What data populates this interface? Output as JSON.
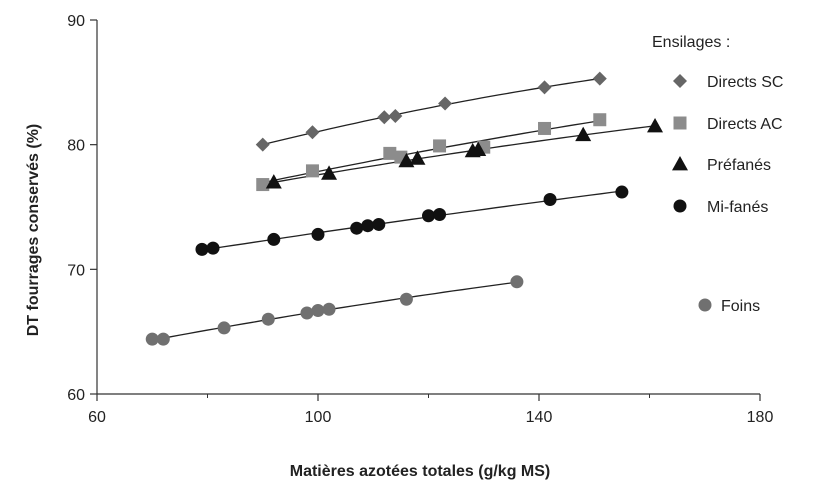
{
  "chart_data": {
    "type": "scatter",
    "title": "",
    "xlabel": "Matières azotées totales (g/kg MS)",
    "ylabel": "DT fourrages conservés (%)",
    "xlim": [
      60,
      180
    ],
    "ylim": [
      60,
      90
    ],
    "x_ticks": [
      "60",
      "100",
      "140",
      "180"
    ],
    "y_ticks": [
      "60",
      "70",
      "80",
      "90"
    ],
    "grid": false,
    "legend_title": "Ensilages :",
    "legend_position": "right",
    "series": [
      {
        "name": "Directs SC",
        "marker": "diamond",
        "color": "#666666",
        "trendline": true,
        "points": [
          [
            90,
            80.0
          ],
          [
            99,
            81.0
          ],
          [
            112,
            82.2
          ],
          [
            114,
            82.3
          ],
          [
            123,
            83.3
          ],
          [
            141,
            84.6
          ],
          [
            151,
            85.3
          ]
        ]
      },
      {
        "name": "Directs AC",
        "marker": "square",
        "color": "#8c8c8c",
        "trendline": true,
        "points": [
          [
            90,
            76.8
          ],
          [
            99,
            77.9
          ],
          [
            113,
            79.3
          ],
          [
            115,
            79.0
          ],
          [
            122,
            79.9
          ],
          [
            130,
            79.8
          ],
          [
            141,
            81.3
          ],
          [
            151,
            82.0
          ]
        ]
      },
      {
        "name": "Préfanés",
        "marker": "triangle",
        "color": "#111111",
        "trendline": true,
        "points": [
          [
            92,
            77.0
          ],
          [
            102,
            77.7
          ],
          [
            116,
            78.7
          ],
          [
            118,
            78.9
          ],
          [
            128,
            79.5
          ],
          [
            129,
            79.6
          ],
          [
            148,
            80.8
          ],
          [
            161,
            81.5
          ]
        ]
      },
      {
        "name": "Mi-fanés",
        "marker": "circle",
        "color": "#111111",
        "trendline": true,
        "points": [
          [
            79,
            71.6
          ],
          [
            81,
            71.7
          ],
          [
            92,
            72.4
          ],
          [
            100,
            72.8
          ],
          [
            107,
            73.3
          ],
          [
            109,
            73.5
          ],
          [
            111,
            73.6
          ],
          [
            120,
            74.3
          ],
          [
            122,
            74.4
          ],
          [
            142,
            75.6
          ],
          [
            155,
            76.2
          ]
        ]
      },
      {
        "name": "Foins",
        "marker": "circle",
        "color": "#707070",
        "trendline": true,
        "points": [
          [
            70,
            64.4
          ],
          [
            72,
            64.4
          ],
          [
            83,
            65.3
          ],
          [
            91,
            66.0
          ],
          [
            98,
            66.5
          ],
          [
            100,
            66.7
          ],
          [
            102,
            66.8
          ],
          [
            116,
            67.6
          ],
          [
            136,
            69.0
          ]
        ]
      }
    ]
  }
}
